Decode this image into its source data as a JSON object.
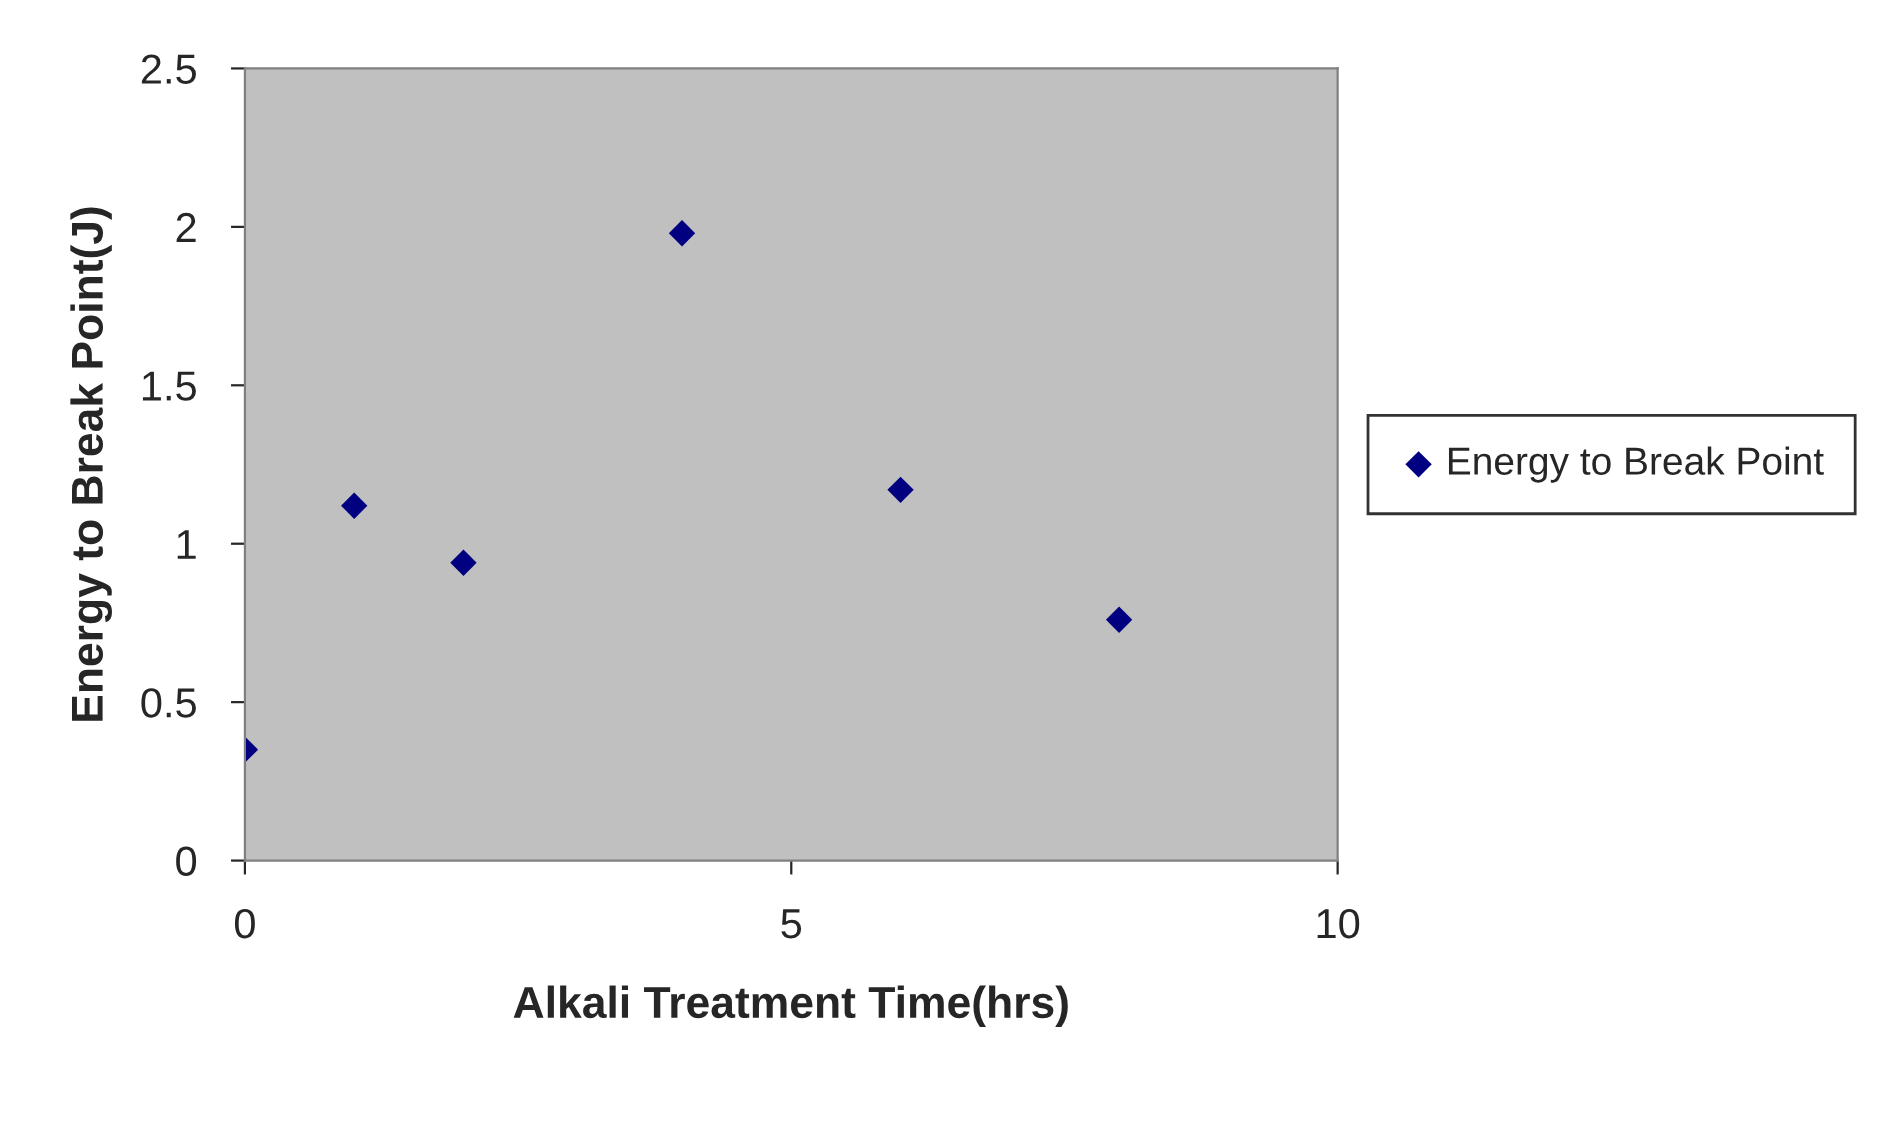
{
  "chart_data": {
    "type": "scatter",
    "xlabel": "Alkali Treatment Time(hrs)",
    "ylabel": "Energy to Break Point(J)",
    "series": [
      {
        "name": "Energy to Break Point",
        "color": "#000080",
        "x": [
          0,
          1,
          2,
          4,
          6,
          8
        ],
        "values": [
          0.35,
          1.12,
          0.94,
          1.98,
          1.17,
          0.76
        ]
      }
    ],
    "xlim": [
      0,
      10
    ],
    "xticks": [
      0,
      5,
      10
    ],
    "ylim": [
      0,
      2.5
    ],
    "yticks": [
      0,
      0.5,
      1,
      1.5,
      2,
      2.5
    ],
    "marker": "diamond",
    "grid": false,
    "legend": "right"
  }
}
